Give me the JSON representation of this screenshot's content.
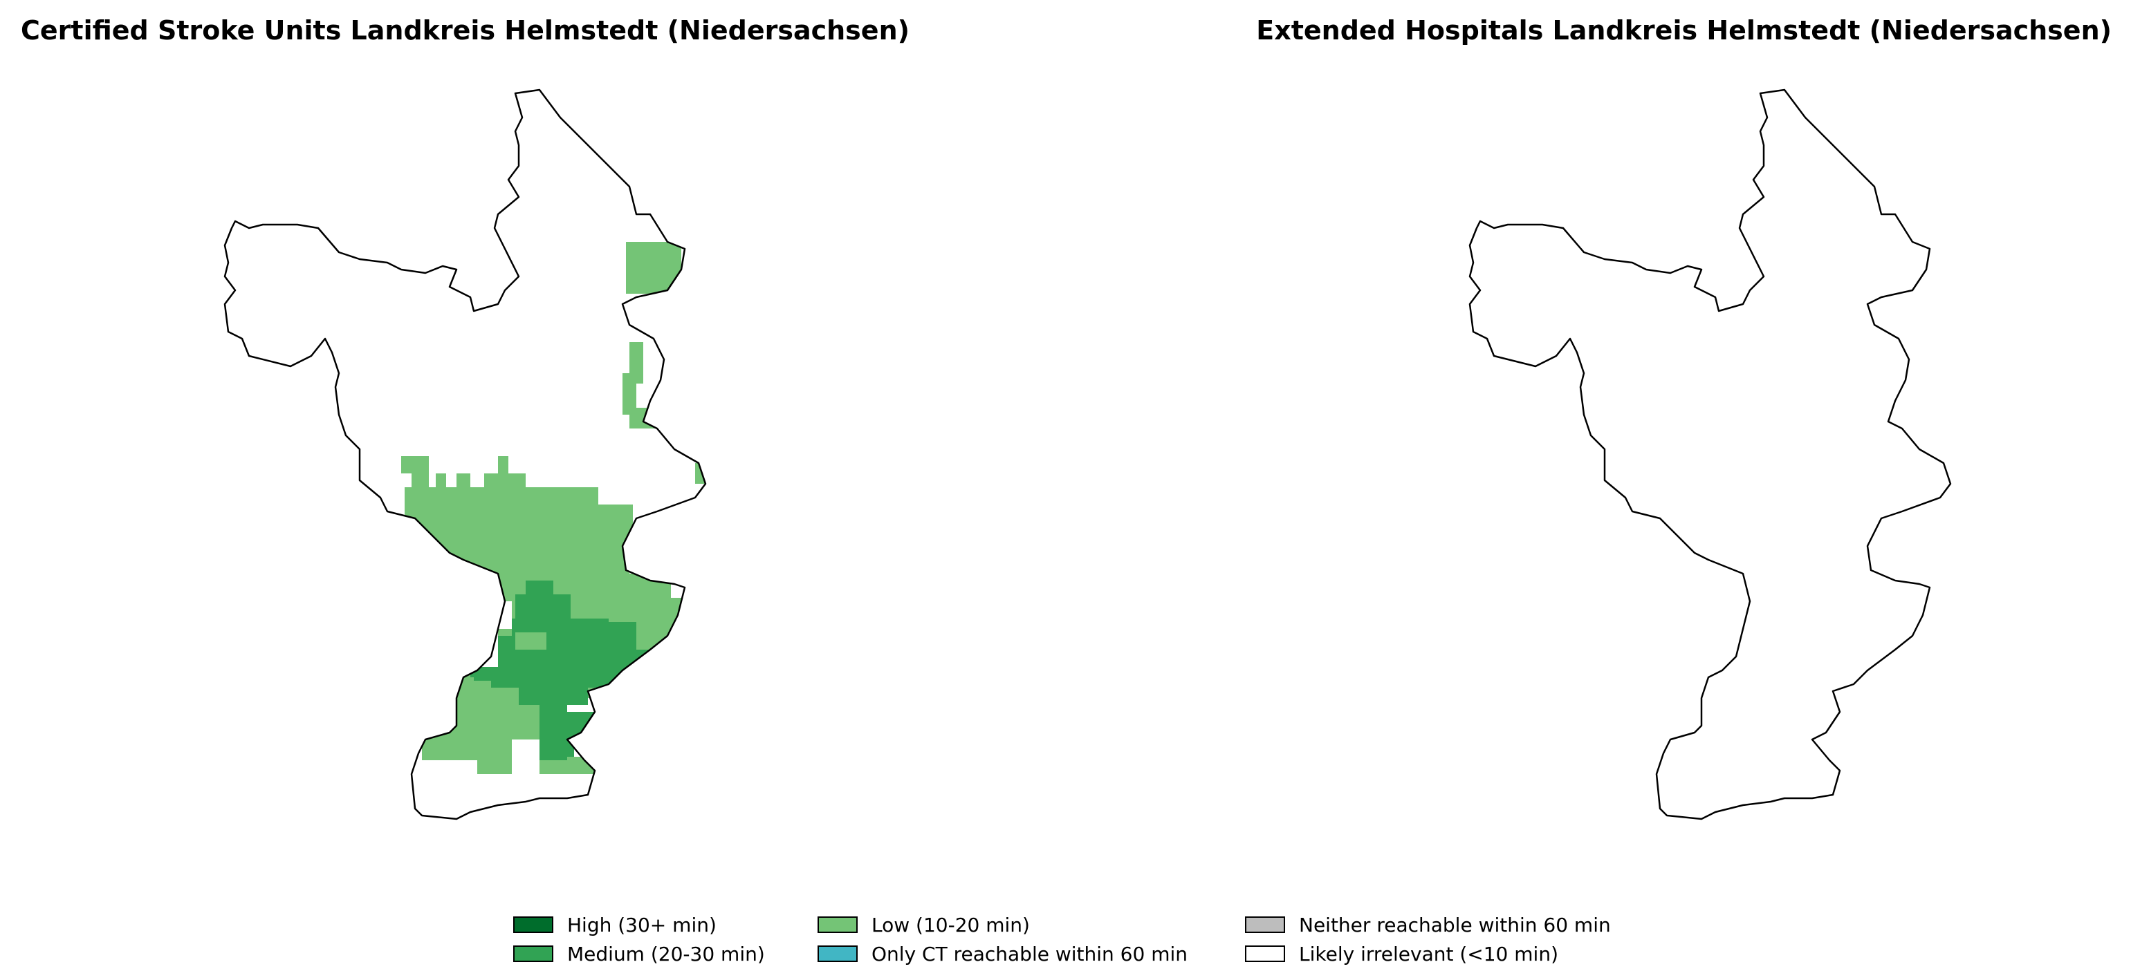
{
  "titles": {
    "left": "Certified Stroke Units Landkreis Helmstedt (Niedersachsen)",
    "right": "Extended Hospitals Landkreis Helmstedt (Niedersachsen)"
  },
  "colors": {
    "high": "#006d2c",
    "medium": "#31a354",
    "low": "#74c476",
    "only_ct": "#41b6c4",
    "neither": "#bdbdbd",
    "irrelevant": "#ffffff",
    "outline": "#000000"
  },
  "legend": [
    {
      "key": "high",
      "label": "High (30+ min)"
    },
    {
      "key": "medium",
      "label": "Medium (20-30 min)"
    },
    {
      "key": "low",
      "label": "Low (10-20 min)"
    },
    {
      "key": "only_ct",
      "label": "Only CT reachable within 60 min"
    },
    {
      "key": "neither",
      "label": "Neither reachable within 60 min"
    },
    {
      "key": "irrelevant",
      "label": "Likely irrelevant (<10 min)"
    }
  ]
}
